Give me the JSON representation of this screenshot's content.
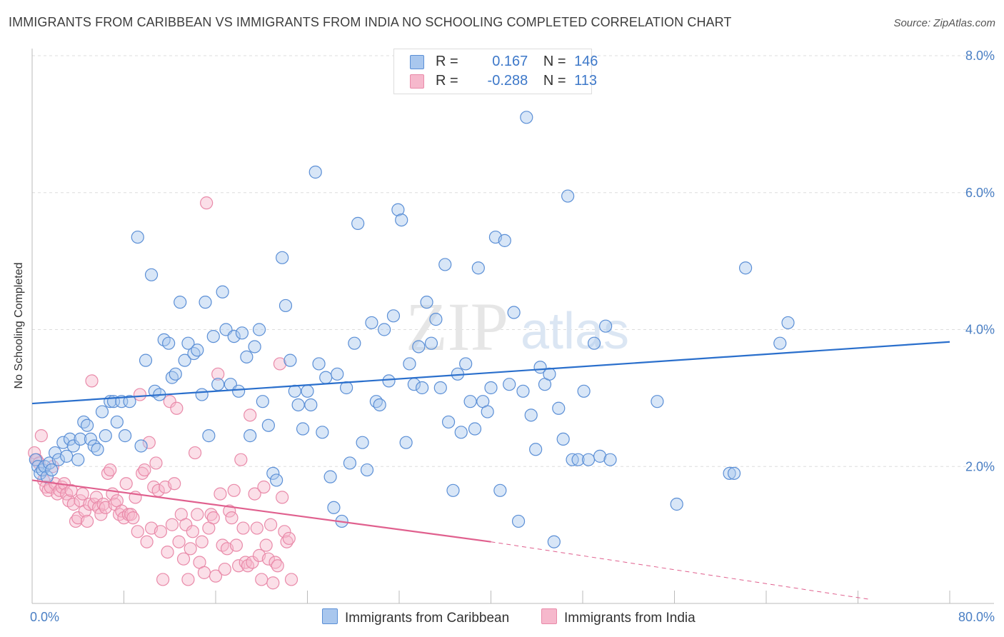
{
  "title": "IMMIGRANTS FROM CARIBBEAN VS IMMIGRANTS FROM INDIA NO SCHOOLING COMPLETED CORRELATION CHART",
  "source": "Source: ZipAtlas.com",
  "watermark": {
    "zip": "ZIP",
    "atlas": "atlas"
  },
  "legend": {
    "series1": {
      "r_label": "R =",
      "r_value": "0.167",
      "n_label": "N =",
      "n_value": "146"
    },
    "series2": {
      "r_label": "R =",
      "r_value": "-0.288",
      "n_label": "N =",
      "n_value": "113"
    }
  },
  "colors": {
    "blue_fill": "#a9c7ee",
    "blue_stroke": "#5b8fd6",
    "blue_line": "#2a6fcc",
    "pink_fill": "#f6b8cc",
    "pink_stroke": "#e98aa9",
    "pink_line": "#e0608e",
    "axis_text": "#4a7fc4",
    "grid": "#dddddd"
  },
  "chart_data": {
    "type": "scatter",
    "title": "IMMIGRANTS FROM CARIBBEAN VS IMMIGRANTS FROM INDIA NO SCHOOLING COMPLETED CORRELATION CHART",
    "xlabel": "",
    "ylabel": "No Schooling Completed",
    "xlim": [
      0,
      80
    ],
    "ylim": [
      0,
      8.0
    ],
    "x_tick_labels": [
      "0.0%",
      "80.0%"
    ],
    "y_ticks": [
      2.0,
      4.0,
      6.0,
      8.0
    ],
    "y_tick_labels": [
      "2.0%",
      "4.0%",
      "6.0%",
      "8.0%"
    ],
    "grid": "horizontal dashed",
    "legend_position": "top-center",
    "series": [
      {
        "name": "Immigrants from Caribbean",
        "color": "#a9c7ee",
        "r": 0.167,
        "n": 146,
        "trend": {
          "x": [
            0,
            80
          ],
          "y": [
            2.92,
            3.82
          ]
        },
        "points": [
          [
            0.3,
            2.1
          ],
          [
            0.5,
            2.0
          ],
          [
            0.7,
            1.9
          ],
          [
            0.9,
            1.95
          ],
          [
            1.1,
            2.0
          ],
          [
            1.3,
            1.85
          ],
          [
            1.5,
            2.05
          ],
          [
            1.7,
            1.95
          ],
          [
            2.0,
            2.2
          ],
          [
            2.3,
            2.1
          ],
          [
            2.7,
            2.35
          ],
          [
            3.0,
            2.15
          ],
          [
            3.3,
            2.4
          ],
          [
            3.6,
            2.3
          ],
          [
            4.0,
            2.1
          ],
          [
            4.2,
            2.4
          ],
          [
            4.5,
            2.65
          ],
          [
            4.8,
            2.6
          ],
          [
            5.1,
            2.4
          ],
          [
            5.4,
            2.3
          ],
          [
            5.7,
            2.25
          ],
          [
            6.1,
            2.8
          ],
          [
            6.4,
            2.45
          ],
          [
            6.8,
            2.95
          ],
          [
            7.1,
            2.95
          ],
          [
            7.4,
            2.65
          ],
          [
            7.8,
            2.95
          ],
          [
            8.1,
            2.45
          ],
          [
            8.5,
            2.95
          ],
          [
            9.2,
            5.35
          ],
          [
            9.5,
            2.3
          ],
          [
            9.9,
            3.55
          ],
          [
            10.4,
            4.8
          ],
          [
            10.7,
            3.1
          ],
          [
            11.1,
            3.05
          ],
          [
            11.5,
            3.85
          ],
          [
            11.9,
            3.8
          ],
          [
            12.2,
            3.3
          ],
          [
            12.5,
            3.35
          ],
          [
            12.9,
            4.4
          ],
          [
            13.3,
            3.55
          ],
          [
            13.6,
            3.8
          ],
          [
            14.1,
            3.65
          ],
          [
            14.4,
            3.7
          ],
          [
            14.8,
            3.05
          ],
          [
            15.1,
            4.4
          ],
          [
            15.4,
            2.45
          ],
          [
            15.8,
            3.9
          ],
          [
            16.2,
            3.2
          ],
          [
            16.6,
            4.55
          ],
          [
            16.9,
            4.0
          ],
          [
            17.3,
            3.2
          ],
          [
            17.6,
            3.9
          ],
          [
            18.0,
            3.1
          ],
          [
            18.3,
            3.95
          ],
          [
            18.7,
            3.6
          ],
          [
            19.0,
            2.45
          ],
          [
            19.4,
            3.75
          ],
          [
            19.8,
            4.0
          ],
          [
            20.1,
            2.95
          ],
          [
            20.6,
            2.6
          ],
          [
            21.0,
            1.9
          ],
          [
            21.3,
            1.8
          ],
          [
            21.8,
            5.05
          ],
          [
            22.1,
            4.35
          ],
          [
            22.5,
            3.55
          ],
          [
            22.9,
            3.1
          ],
          [
            23.2,
            2.9
          ],
          [
            23.6,
            2.55
          ],
          [
            24.0,
            3.1
          ],
          [
            24.3,
            2.9
          ],
          [
            24.7,
            6.3
          ],
          [
            25.0,
            3.5
          ],
          [
            25.3,
            2.5
          ],
          [
            25.6,
            3.3
          ],
          [
            26.0,
            1.85
          ],
          [
            26.3,
            1.4
          ],
          [
            26.6,
            3.35
          ],
          [
            27.0,
            1.2
          ],
          [
            27.4,
            3.15
          ],
          [
            27.7,
            2.05
          ],
          [
            28.1,
            3.8
          ],
          [
            28.4,
            5.55
          ],
          [
            28.8,
            2.35
          ],
          [
            29.2,
            1.95
          ],
          [
            29.6,
            4.1
          ],
          [
            30.0,
            2.95
          ],
          [
            30.3,
            2.9
          ],
          [
            30.7,
            4.0
          ],
          [
            31.1,
            3.25
          ],
          [
            31.5,
            4.2
          ],
          [
            31.9,
            5.75
          ],
          [
            32.2,
            5.6
          ],
          [
            32.6,
            2.35
          ],
          [
            32.9,
            3.5
          ],
          [
            33.3,
            3.2
          ],
          [
            33.7,
            3.75
          ],
          [
            34.0,
            3.15
          ],
          [
            34.4,
            4.4
          ],
          [
            34.8,
            3.8
          ],
          [
            35.2,
            4.15
          ],
          [
            35.6,
            3.15
          ],
          [
            36.0,
            4.95
          ],
          [
            36.3,
            2.65
          ],
          [
            36.7,
            1.65
          ],
          [
            37.1,
            3.35
          ],
          [
            37.4,
            2.5
          ],
          [
            37.8,
            3.5
          ],
          [
            38.2,
            2.95
          ],
          [
            38.6,
            2.55
          ],
          [
            38.9,
            4.9
          ],
          [
            39.3,
            2.95
          ],
          [
            39.7,
            2.8
          ],
          [
            40.0,
            3.15
          ],
          [
            40.4,
            5.35
          ],
          [
            40.8,
            1.65
          ],
          [
            41.2,
            5.3
          ],
          [
            41.6,
            3.2
          ],
          [
            42.0,
            4.25
          ],
          [
            42.4,
            1.2
          ],
          [
            42.8,
            3.1
          ],
          [
            43.1,
            7.1
          ],
          [
            43.5,
            2.75
          ],
          [
            43.9,
            2.25
          ],
          [
            44.3,
            3.45
          ],
          [
            44.7,
            3.2
          ],
          [
            45.1,
            3.35
          ],
          [
            45.5,
            0.9
          ],
          [
            45.9,
            2.85
          ],
          [
            46.3,
            2.4
          ],
          [
            46.7,
            5.95
          ],
          [
            47.1,
            2.1
          ],
          [
            47.6,
            2.1
          ],
          [
            48.1,
            3.1
          ],
          [
            48.5,
            2.1
          ],
          [
            49.0,
            3.8
          ],
          [
            49.5,
            2.15
          ],
          [
            50.0,
            4.05
          ],
          [
            50.4,
            2.1
          ],
          [
            54.5,
            2.95
          ],
          [
            56.2,
            1.45
          ],
          [
            62.2,
            4.9
          ],
          [
            65.2,
            3.8
          ],
          [
            65.9,
            4.1
          ],
          [
            60.8,
            1.9
          ],
          [
            61.2,
            1.9
          ]
        ]
      },
      {
        "name": "Immigrants from India",
        "color": "#f6b8cc",
        "r": -0.288,
        "n": 113,
        "trend": {
          "x": [
            0,
            40
          ],
          "y": [
            1.8,
            0.9
          ]
        },
        "trend_dashed": {
          "x": [
            40,
            73
          ],
          "y": [
            0.9,
            0.06
          ]
        },
        "points": [
          [
            0.2,
            2.2
          ],
          [
            0.4,
            2.1
          ],
          [
            0.6,
            2.05
          ],
          [
            0.8,
            2.45
          ],
          [
            1.0,
            1.8
          ],
          [
            1.2,
            1.7
          ],
          [
            1.4,
            1.65
          ],
          [
            1.6,
            1.7
          ],
          [
            1.8,
            2.0
          ],
          [
            2.0,
            1.75
          ],
          [
            2.2,
            1.6
          ],
          [
            2.4,
            1.65
          ],
          [
            2.6,
            1.7
          ],
          [
            2.8,
            1.75
          ],
          [
            3.0,
            1.6
          ],
          [
            3.2,
            1.5
          ],
          [
            3.4,
            1.65
          ],
          [
            3.6,
            1.45
          ],
          [
            3.8,
            1.2
          ],
          [
            4.0,
            1.25
          ],
          [
            4.2,
            1.5
          ],
          [
            4.4,
            1.6
          ],
          [
            4.6,
            1.35
          ],
          [
            4.8,
            1.2
          ],
          [
            5.0,
            1.45
          ],
          [
            5.2,
            3.25
          ],
          [
            5.4,
            1.45
          ],
          [
            5.6,
            1.55
          ],
          [
            5.8,
            1.4
          ],
          [
            6.0,
            1.3
          ],
          [
            6.2,
            1.45
          ],
          [
            6.4,
            1.4
          ],
          [
            6.6,
            1.9
          ],
          [
            6.8,
            1.95
          ],
          [
            7.0,
            1.6
          ],
          [
            7.2,
            1.45
          ],
          [
            7.4,
            1.5
          ],
          [
            7.6,
            1.3
          ],
          [
            7.8,
            1.35
          ],
          [
            8.0,
            1.25
          ],
          [
            8.2,
            1.75
          ],
          [
            8.4,
            1.3
          ],
          [
            8.6,
            1.3
          ],
          [
            8.8,
            1.25
          ],
          [
            9.0,
            1.55
          ],
          [
            9.2,
            1.05
          ],
          [
            9.4,
            3.05
          ],
          [
            9.6,
            1.9
          ],
          [
            9.8,
            1.95
          ],
          [
            10.0,
            0.9
          ],
          [
            10.2,
            2.35
          ],
          [
            10.4,
            1.1
          ],
          [
            10.6,
            1.7
          ],
          [
            10.8,
            2.05
          ],
          [
            11.0,
            1.65
          ],
          [
            11.2,
            1.05
          ],
          [
            11.4,
            0.35
          ],
          [
            11.6,
            1.7
          ],
          [
            11.8,
            0.75
          ],
          [
            12.0,
            2.95
          ],
          [
            12.2,
            1.15
          ],
          [
            12.4,
            1.75
          ],
          [
            12.6,
            2.85
          ],
          [
            12.8,
            0.9
          ],
          [
            13.0,
            1.3
          ],
          [
            13.2,
            0.65
          ],
          [
            13.4,
            1.15
          ],
          [
            13.6,
            0.35
          ],
          [
            13.8,
            0.8
          ],
          [
            14.0,
            1.05
          ],
          [
            14.2,
            2.2
          ],
          [
            14.4,
            1.3
          ],
          [
            14.6,
            0.6
          ],
          [
            14.8,
            0.9
          ],
          [
            15.0,
            0.45
          ],
          [
            15.2,
            5.85
          ],
          [
            15.4,
            1.1
          ],
          [
            15.6,
            1.3
          ],
          [
            15.8,
            1.25
          ],
          [
            16.0,
            0.4
          ],
          [
            16.2,
            3.35
          ],
          [
            16.4,
            1.6
          ],
          [
            16.6,
            0.85
          ],
          [
            16.8,
            0.5
          ],
          [
            17.0,
            0.8
          ],
          [
            17.2,
            1.35
          ],
          [
            17.4,
            1.25
          ],
          [
            17.6,
            1.65
          ],
          [
            17.8,
            0.85
          ],
          [
            18.0,
            0.55
          ],
          [
            18.2,
            2.1
          ],
          [
            18.4,
            1.1
          ],
          [
            18.6,
            0.6
          ],
          [
            18.8,
            0.55
          ],
          [
            19.0,
            2.75
          ],
          [
            19.2,
            0.6
          ],
          [
            19.4,
            1.6
          ],
          [
            19.6,
            1.1
          ],
          [
            19.8,
            0.7
          ],
          [
            20.0,
            0.35
          ],
          [
            20.2,
            1.7
          ],
          [
            20.4,
            0.85
          ],
          [
            20.6,
            0.65
          ],
          [
            20.8,
            1.15
          ],
          [
            21.0,
            0.3
          ],
          [
            21.2,
            0.6
          ],
          [
            21.4,
            0.55
          ],
          [
            21.6,
            3.5
          ],
          [
            21.8,
            1.55
          ],
          [
            22.0,
            1.05
          ],
          [
            22.2,
            0.9
          ],
          [
            22.4,
            0.95
          ],
          [
            22.6,
            0.35
          ]
        ]
      }
    ]
  },
  "bottom_legend": {
    "item1": "Immigrants from Caribbean",
    "item2": "Immigrants from India"
  },
  "y_axis_label": "No Schooling Completed"
}
